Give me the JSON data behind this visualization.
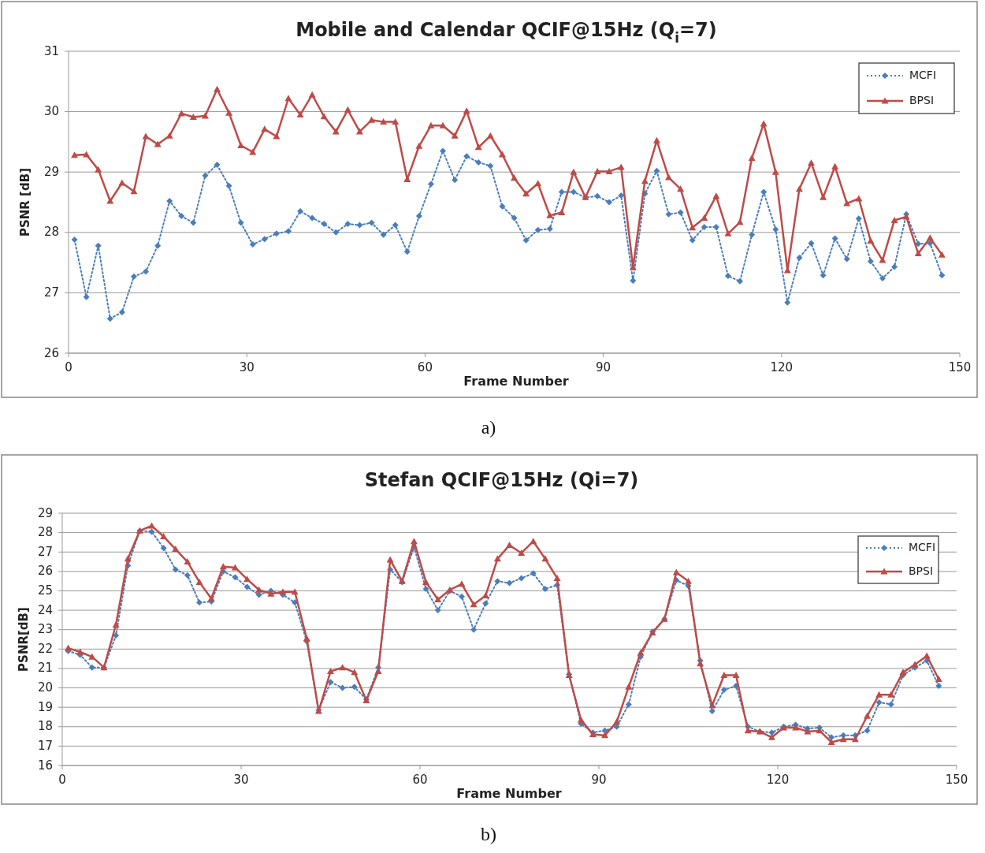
{
  "chart_data": [
    {
      "type": "line",
      "title": "Mobile and Calendar QCIF@15Hz (Q$_{i}$=7)",
      "xlabel": "Frame Number",
      "ylabel": "PSNR [dB]",
      "annotations": [
        "a)"
      ],
      "xlim": [
        0,
        150
      ],
      "xticks": [
        0,
        30,
        60,
        90,
        120,
        150
      ],
      "ylim": [
        26,
        31
      ],
      "yticks": [
        26,
        27,
        28,
        29,
        30,
        31
      ],
      "grid": "y",
      "legend": "top right",
      "x": [
        1,
        3,
        5,
        7,
        9,
        11,
        13,
        15,
        17,
        19,
        21,
        23,
        25,
        27,
        29,
        31,
        33,
        35,
        37,
        39,
        41,
        43,
        45,
        47,
        49,
        51,
        53,
        55,
        57,
        59,
        61,
        63,
        65,
        67,
        69,
        71,
        73,
        75,
        77,
        79,
        81,
        83,
        85,
        87,
        89,
        91,
        93,
        95,
        97,
        99,
        101,
        103,
        105,
        107,
        109,
        111,
        113,
        115,
        117,
        119,
        121,
        123,
        125,
        127,
        129,
        131,
        133,
        135,
        137,
        139,
        141,
        143,
        145,
        147
      ],
      "series": [
        {
          "name": "MCFI",
          "color": "#4a7ebb",
          "marker": "diamond",
          "line_style": "dotted",
          "values": [
            27.88,
            26.93,
            27.78,
            26.57,
            26.68,
            27.27,
            27.35,
            27.78,
            28.52,
            28.27,
            28.16,
            28.94,
            29.12,
            28.77,
            28.16,
            27.8,
            27.89,
            27.98,
            28.02,
            28.35,
            28.24,
            28.14,
            28.0,
            28.14,
            28.12,
            28.16,
            27.96,
            28.12,
            27.68,
            28.27,
            28.8,
            29.35,
            28.87,
            29.26,
            29.16,
            29.1,
            28.43,
            28.24,
            27.87,
            28.04,
            28.06,
            28.67,
            28.67,
            28.58,
            28.6,
            28.5,
            28.61,
            27.2,
            28.64,
            29.02,
            28.3,
            28.33,
            27.87,
            28.09,
            28.09,
            27.28,
            27.19,
            27.96,
            28.67,
            28.05,
            26.84,
            27.58,
            27.82,
            27.29,
            27.9,
            27.56,
            28.23,
            27.52,
            27.24,
            27.43,
            28.3,
            27.81,
            27.82,
            27.29
          ]
        },
        {
          "name": "BPSI",
          "color": "#be4b48",
          "marker": "triangle",
          "line_style": "solid",
          "values": [
            29.28,
            29.29,
            29.04,
            28.52,
            28.82,
            28.68,
            29.59,
            29.46,
            29.6,
            29.97,
            29.91,
            29.93,
            30.37,
            29.98,
            29.44,
            29.33,
            29.71,
            29.59,
            30.22,
            29.95,
            30.28,
            29.92,
            29.67,
            30.03,
            29.67,
            29.86,
            29.83,
            29.83,
            28.88,
            29.43,
            29.77,
            29.77,
            29.6,
            30.01,
            29.41,
            29.6,
            29.29,
            28.9,
            28.64,
            28.81,
            28.28,
            28.33,
            29.0,
            28.58,
            29.01,
            29.01,
            29.08,
            27.42,
            28.85,
            29.52,
            28.91,
            28.72,
            28.08,
            28.24,
            28.6,
            27.98,
            28.17,
            29.23,
            29.8,
            29.0,
            27.37,
            28.72,
            29.15,
            28.58,
            29.09,
            28.48,
            28.56,
            27.86,
            27.54,
            28.2,
            28.26,
            27.65,
            27.91,
            27.63
          ]
        }
      ]
    },
    {
      "type": "line",
      "title": "Stefan QCIF@15Hz (Qi=7)",
      "xlabel": "Frame Number",
      "ylabel": "PSNR[dB]",
      "annotations": [
        "b)"
      ],
      "xlim": [
        0,
        150
      ],
      "xticks": [
        0,
        30,
        60,
        90,
        120,
        150
      ],
      "ylim": [
        16,
        29
      ],
      "yticks": [
        16,
        17,
        18,
        19,
        20,
        21,
        22,
        23,
        24,
        25,
        26,
        27,
        28,
        29
      ],
      "grid": "y",
      "legend": "top right",
      "x": [
        1,
        3,
        5,
        7,
        9,
        11,
        13,
        15,
        17,
        19,
        21,
        23,
        25,
        27,
        29,
        31,
        33,
        35,
        37,
        39,
        41,
        43,
        45,
        47,
        49,
        51,
        53,
        55,
        57,
        59,
        61,
        63,
        65,
        67,
        69,
        71,
        73,
        75,
        77,
        79,
        81,
        83,
        85,
        87,
        89,
        91,
        93,
        95,
        97,
        99,
        101,
        103,
        105,
        107,
        109,
        111,
        113,
        115,
        117,
        119,
        121,
        123,
        125,
        127,
        129,
        131,
        133,
        135,
        137,
        139,
        141,
        143,
        145,
        147
      ],
      "series": [
        {
          "name": "MCFI",
          "color": "#4a7ebb",
          "marker": "diamond",
          "line_style": "dotted",
          "values": [
            21.9,
            21.7,
            21.05,
            21.05,
            22.7,
            26.3,
            28.1,
            28.05,
            27.2,
            26.1,
            25.8,
            24.4,
            24.45,
            26.0,
            25.7,
            25.2,
            24.8,
            25.0,
            24.8,
            24.4,
            22.4,
            18.85,
            20.3,
            20.0,
            20.05,
            19.4,
            21.05,
            26.1,
            25.45,
            27.25,
            25.1,
            24.0,
            25.0,
            24.7,
            23.0,
            24.35,
            25.5,
            25.4,
            25.65,
            25.9,
            25.1,
            25.3,
            20.7,
            18.15,
            17.7,
            17.8,
            18.0,
            19.15,
            21.6,
            22.9,
            23.55,
            25.55,
            25.25,
            21.4,
            18.8,
            19.9,
            20.1,
            18.0,
            17.75,
            17.7,
            18.0,
            18.1,
            17.9,
            17.95,
            17.45,
            17.55,
            17.55,
            17.8,
            19.25,
            19.15,
            20.65,
            21.05,
            21.4,
            20.1
          ]
        },
        {
          "name": "BPSI",
          "color": "#be4b48",
          "marker": "triangle",
          "line_style": "solid",
          "values": [
            22.05,
            21.85,
            21.6,
            21.05,
            23.25,
            26.65,
            28.1,
            28.35,
            27.8,
            27.15,
            26.5,
            25.45,
            24.6,
            26.25,
            26.2,
            25.6,
            25.05,
            24.85,
            24.95,
            24.95,
            22.55,
            18.8,
            20.85,
            21.05,
            20.8,
            19.35,
            20.85,
            26.6,
            25.5,
            27.55,
            25.45,
            24.55,
            25.05,
            25.35,
            24.3,
            24.75,
            26.65,
            27.35,
            26.95,
            27.55,
            26.65,
            25.65,
            20.65,
            18.35,
            17.6,
            17.55,
            18.25,
            20.05,
            21.8,
            22.85,
            23.55,
            25.95,
            25.5,
            21.25,
            19.1,
            20.65,
            20.65,
            17.8,
            17.75,
            17.45,
            17.95,
            17.95,
            17.75,
            17.8,
            17.2,
            17.35,
            17.35,
            18.55,
            19.65,
            19.65,
            20.8,
            21.2,
            21.65,
            20.45
          ]
        }
      ]
    }
  ]
}
